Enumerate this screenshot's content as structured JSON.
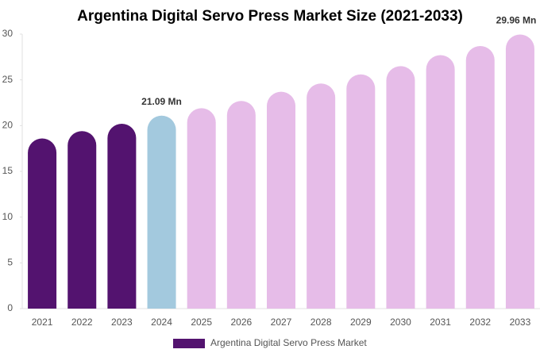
{
  "chart_data": {
    "type": "bar",
    "title": "Argentina Digital Servo Press Market Size (2021-2033)",
    "categories": [
      "2021",
      "2022",
      "2023",
      "2024",
      "2025",
      "2026",
      "2027",
      "2028",
      "2029",
      "2030",
      "2031",
      "2032",
      "2033"
    ],
    "series": [
      {
        "name": "Argentina Digital Servo Press Market",
        "color": "#53136f",
        "values": [
          18.6,
          19.4,
          20.2,
          21.09,
          21.9,
          22.7,
          23.7,
          24.6,
          25.6,
          26.5,
          27.7,
          28.7,
          29.96
        ],
        "value_labels": [
          null,
          null,
          null,
          "21.09 Mn",
          null,
          null,
          null,
          null,
          null,
          null,
          null,
          null,
          "29.96 Mn"
        ],
        "bar_colors": [
          "#53136f",
          "#53136f",
          "#53136f",
          "#a3c9de",
          "#e6bce8",
          "#e6bce8",
          "#e6bce8",
          "#e6bce8",
          "#e6bce8",
          "#e6bce8",
          "#e6bce8",
          "#e6bce8",
          "#e6bce8"
        ]
      }
    ],
    "ylim": [
      0,
      30
    ],
    "yticks": [
      0,
      5,
      10,
      15,
      20,
      25,
      30
    ],
    "grid": false,
    "legend": "bottom"
  }
}
